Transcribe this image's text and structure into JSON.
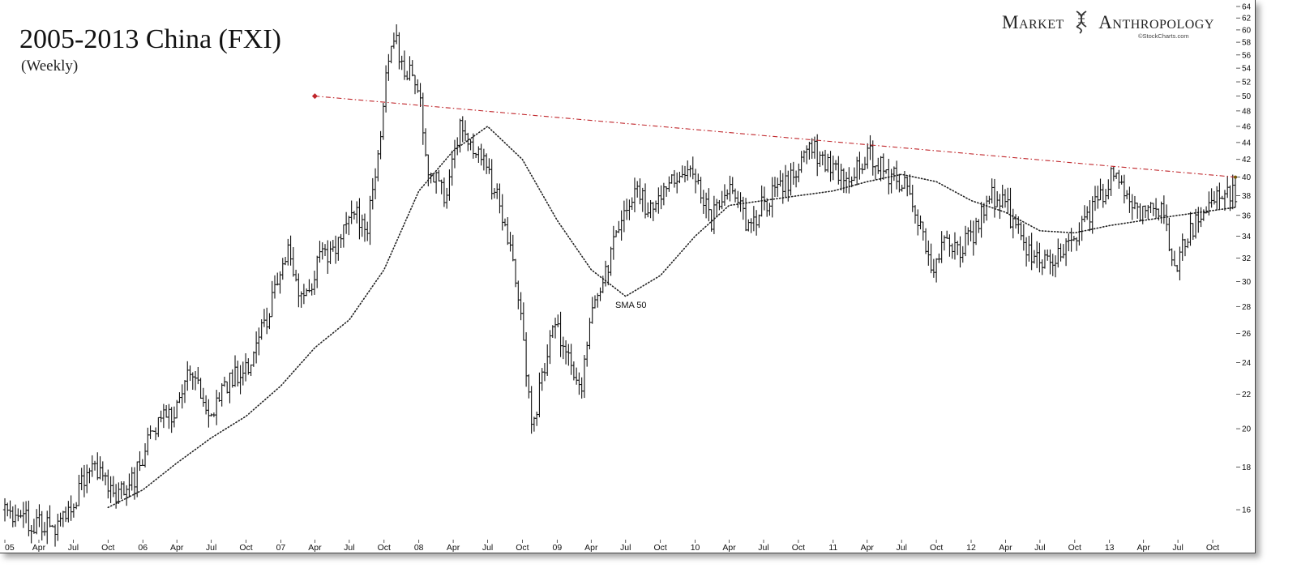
{
  "title": "2005-2013 China (FXI)",
  "subtitle": "(Weekly)",
  "brand": {
    "word1": "Market",
    "word2": "Anthropology",
    "credit": "©StockCharts.com"
  },
  "colors": {
    "bars": "#111111",
    "sma": "#222222",
    "trendline": "#c0262b",
    "frame_shadow": "#888888"
  },
  "chart_data": {
    "type": "ohlc",
    "frequency": "weekly",
    "y_scale": "log",
    "ylim": [
      14.8,
      64
    ],
    "y_axis_side": "right",
    "y_ticks": [
      16,
      18,
      20,
      22,
      24,
      26,
      28,
      30,
      32,
      34,
      36,
      38,
      40,
      42,
      44,
      46,
      48,
      50,
      52,
      54,
      56,
      58,
      60,
      62,
      64
    ],
    "x_range": [
      "2005-01-01",
      "2013-11-30"
    ],
    "x_ticks": [
      {
        "date": "2005-01-01",
        "label": "05"
      },
      {
        "date": "2005-04-01",
        "label": "Apr"
      },
      {
        "date": "2005-07-01",
        "label": "Jul"
      },
      {
        "date": "2005-10-01",
        "label": "Oct"
      },
      {
        "date": "2006-01-01",
        "label": "06"
      },
      {
        "date": "2006-04-01",
        "label": "Apr"
      },
      {
        "date": "2006-07-01",
        "label": "Jul"
      },
      {
        "date": "2006-10-01",
        "label": "Oct"
      },
      {
        "date": "2007-01-01",
        "label": "07"
      },
      {
        "date": "2007-04-01",
        "label": "Apr"
      },
      {
        "date": "2007-07-01",
        "label": "Jul"
      },
      {
        "date": "2007-10-01",
        "label": "Oct"
      },
      {
        "date": "2008-01-01",
        "label": "08"
      },
      {
        "date": "2008-04-01",
        "label": "Apr"
      },
      {
        "date": "2008-07-01",
        "label": "Jul"
      },
      {
        "date": "2008-10-01",
        "label": "Oct"
      },
      {
        "date": "2009-01-01",
        "label": "09"
      },
      {
        "date": "2009-04-01",
        "label": "Apr"
      },
      {
        "date": "2009-07-01",
        "label": "Jul"
      },
      {
        "date": "2009-10-01",
        "label": "Oct"
      },
      {
        "date": "2010-01-01",
        "label": "10"
      },
      {
        "date": "2010-04-01",
        "label": "Apr"
      },
      {
        "date": "2010-07-01",
        "label": "Jul"
      },
      {
        "date": "2010-10-01",
        "label": "Oct"
      },
      {
        "date": "2011-01-01",
        "label": "11"
      },
      {
        "date": "2011-04-01",
        "label": "Apr"
      },
      {
        "date": "2011-07-01",
        "label": "Jul"
      },
      {
        "date": "2011-10-01",
        "label": "Oct"
      },
      {
        "date": "2012-01-01",
        "label": "12"
      },
      {
        "date": "2012-04-01",
        "label": "Apr"
      },
      {
        "date": "2012-07-01",
        "label": "Jul"
      },
      {
        "date": "2012-10-01",
        "label": "Oct"
      },
      {
        "date": "2013-01-01",
        "label": "13"
      },
      {
        "date": "2013-04-01",
        "label": "Apr"
      },
      {
        "date": "2013-07-01",
        "label": "Jul"
      },
      {
        "date": "2013-10-01",
        "label": "Oct"
      }
    ],
    "price_path": [
      {
        "date": "2005-01-01",
        "close": 16.0
      },
      {
        "date": "2005-03-15",
        "close": 15.5
      },
      {
        "date": "2005-04-15",
        "close": 15.4
      },
      {
        "date": "2005-05-25",
        "close": 15.3
      },
      {
        "date": "2005-07-10",
        "close": 16.5
      },
      {
        "date": "2005-08-10",
        "close": 17.9
      },
      {
        "date": "2005-09-10",
        "close": 18.0
      },
      {
        "date": "2005-10-20",
        "close": 16.4
      },
      {
        "date": "2005-12-10",
        "close": 17.5
      },
      {
        "date": "2006-02-01",
        "close": 20.0
      },
      {
        "date": "2006-04-10",
        "close": 21.5
      },
      {
        "date": "2006-05-10",
        "close": 23.6
      },
      {
        "date": "2006-06-20",
        "close": 20.5
      },
      {
        "date": "2006-08-01",
        "close": 22.5
      },
      {
        "date": "2006-10-01",
        "close": 23.5
      },
      {
        "date": "2006-12-01",
        "close": 27.5
      },
      {
        "date": "2007-01-20",
        "close": 32.5
      },
      {
        "date": "2007-03-05",
        "close": 28.0
      },
      {
        "date": "2007-04-15",
        "close": 32.0
      },
      {
        "date": "2007-06-01",
        "close": 33.5
      },
      {
        "date": "2007-07-10",
        "close": 36.0
      },
      {
        "date": "2007-08-20",
        "close": 35.0
      },
      {
        "date": "2007-09-20",
        "close": 45.0
      },
      {
        "date": "2007-10-25",
        "close": 60.0
      },
      {
        "date": "2007-11-15",
        "close": 55.0
      },
      {
        "date": "2008-01-01",
        "close": 51.0
      },
      {
        "date": "2008-01-25",
        "close": 41.0
      },
      {
        "date": "2008-03-10",
        "close": 38.0
      },
      {
        "date": "2008-04-20",
        "close": 46.5
      },
      {
        "date": "2008-05-20",
        "close": 44.0
      },
      {
        "date": "2008-07-01",
        "close": 40.5
      },
      {
        "date": "2008-08-15",
        "close": 35.5
      },
      {
        "date": "2008-09-20",
        "close": 29.0
      },
      {
        "date": "2008-10-25",
        "close": 19.8
      },
      {
        "date": "2008-12-01",
        "close": 24.0
      },
      {
        "date": "2008-12-25",
        "close": 27.0
      },
      {
        "date": "2009-02-01",
        "close": 24.0
      },
      {
        "date": "2009-03-05",
        "close": 22.5
      },
      {
        "date": "2009-04-10",
        "close": 28.5
      },
      {
        "date": "2009-05-15",
        "close": 31.5
      },
      {
        "date": "2009-06-20",
        "close": 35.5
      },
      {
        "date": "2009-08-05",
        "close": 38.5
      },
      {
        "date": "2009-09-01",
        "close": 36.5
      },
      {
        "date": "2009-11-10",
        "close": 40.5
      },
      {
        "date": "2010-01-01",
        "close": 40.0
      },
      {
        "date": "2010-02-10",
        "close": 35.5
      },
      {
        "date": "2010-04-10",
        "close": 38.5
      },
      {
        "date": "2010-05-20",
        "close": 35.0
      },
      {
        "date": "2010-07-01",
        "close": 37.0
      },
      {
        "date": "2010-09-01",
        "close": 39.5
      },
      {
        "date": "2010-11-01",
        "close": 43.5
      },
      {
        "date": "2010-12-15",
        "close": 41.5
      },
      {
        "date": "2011-02-01",
        "close": 39.5
      },
      {
        "date": "2011-04-05",
        "close": 42.5
      },
      {
        "date": "2011-05-20",
        "close": 40.5
      },
      {
        "date": "2011-07-10",
        "close": 39.5
      },
      {
        "date": "2011-08-10",
        "close": 35.5
      },
      {
        "date": "2011-09-25",
        "close": 30.5
      },
      {
        "date": "2011-10-25",
        "close": 34.0
      },
      {
        "date": "2011-11-25",
        "close": 32.5
      },
      {
        "date": "2012-01-10",
        "close": 34.5
      },
      {
        "date": "2012-02-20",
        "close": 38.0
      },
      {
        "date": "2012-04-01",
        "close": 37.0
      },
      {
        "date": "2012-05-25",
        "close": 32.5
      },
      {
        "date": "2012-07-05",
        "close": 32.0
      },
      {
        "date": "2012-09-05",
        "close": 32.5
      },
      {
        "date": "2012-10-15",
        "close": 35.0
      },
      {
        "date": "2012-12-01",
        "close": 37.5
      },
      {
        "date": "2013-01-10",
        "close": 40.5
      },
      {
        "date": "2013-02-10",
        "close": 38.5
      },
      {
        "date": "2013-04-01",
        "close": 36.0
      },
      {
        "date": "2013-05-15",
        "close": 36.8
      },
      {
        "date": "2013-06-25",
        "close": 31.5
      },
      {
        "date": "2013-08-01",
        "close": 34.5
      },
      {
        "date": "2013-09-15",
        "close": 36.5
      },
      {
        "date": "2013-10-15",
        "close": 38.5
      },
      {
        "date": "2013-11-30",
        "close": 38.0
      }
    ],
    "series": [
      {
        "name": "SMA 50",
        "style": "dotted",
        "points": [
          {
            "date": "2005-10-01",
            "value": 16.1
          },
          {
            "date": "2006-01-01",
            "value": 16.9
          },
          {
            "date": "2006-04-01",
            "value": 18.2
          },
          {
            "date": "2006-07-01",
            "value": 19.5
          },
          {
            "date": "2006-10-01",
            "value": 20.7
          },
          {
            "date": "2007-01-01",
            "value": 22.5
          },
          {
            "date": "2007-04-01",
            "value": 25.0
          },
          {
            "date": "2007-07-01",
            "value": 27.0
          },
          {
            "date": "2007-10-01",
            "value": 31.0
          },
          {
            "date": "2008-01-01",
            "value": 38.5
          },
          {
            "date": "2008-04-01",
            "value": 43.0
          },
          {
            "date": "2008-07-01",
            "value": 46.0
          },
          {
            "date": "2008-10-01",
            "value": 42.0
          },
          {
            "date": "2009-01-01",
            "value": 35.5
          },
          {
            "date": "2009-04-01",
            "value": 31.0
          },
          {
            "date": "2009-07-01",
            "value": 28.8
          },
          {
            "date": "2009-10-01",
            "value": 30.5
          },
          {
            "date": "2010-01-01",
            "value": 34.0
          },
          {
            "date": "2010-04-01",
            "value": 37.0
          },
          {
            "date": "2010-07-01",
            "value": 37.5
          },
          {
            "date": "2010-10-01",
            "value": 38.0
          },
          {
            "date": "2011-01-01",
            "value": 38.5
          },
          {
            "date": "2011-04-01",
            "value": 39.5
          },
          {
            "date": "2011-07-01",
            "value": 40.3
          },
          {
            "date": "2011-10-01",
            "value": 39.5
          },
          {
            "date": "2012-01-01",
            "value": 37.5
          },
          {
            "date": "2012-04-01",
            "value": 36.3
          },
          {
            "date": "2012-07-01",
            "value": 34.5
          },
          {
            "date": "2012-10-01",
            "value": 34.3
          },
          {
            "date": "2013-01-01",
            "value": 35.0
          },
          {
            "date": "2013-04-01",
            "value": 35.5
          },
          {
            "date": "2013-07-01",
            "value": 36.0
          },
          {
            "date": "2013-11-30",
            "value": 36.8
          }
        ]
      },
      {
        "name": "",
        "style": "dash-dot",
        "points": [
          {
            "date": "2007-04-01",
            "value": 50.0
          },
          {
            "date": "2013-11-30",
            "value": 40.0
          }
        ]
      }
    ],
    "annotations": [
      {
        "text": "SMA 50",
        "date": "2009-07-15",
        "value": 27.9
      }
    ],
    "grid": false,
    "legend": "none"
  }
}
